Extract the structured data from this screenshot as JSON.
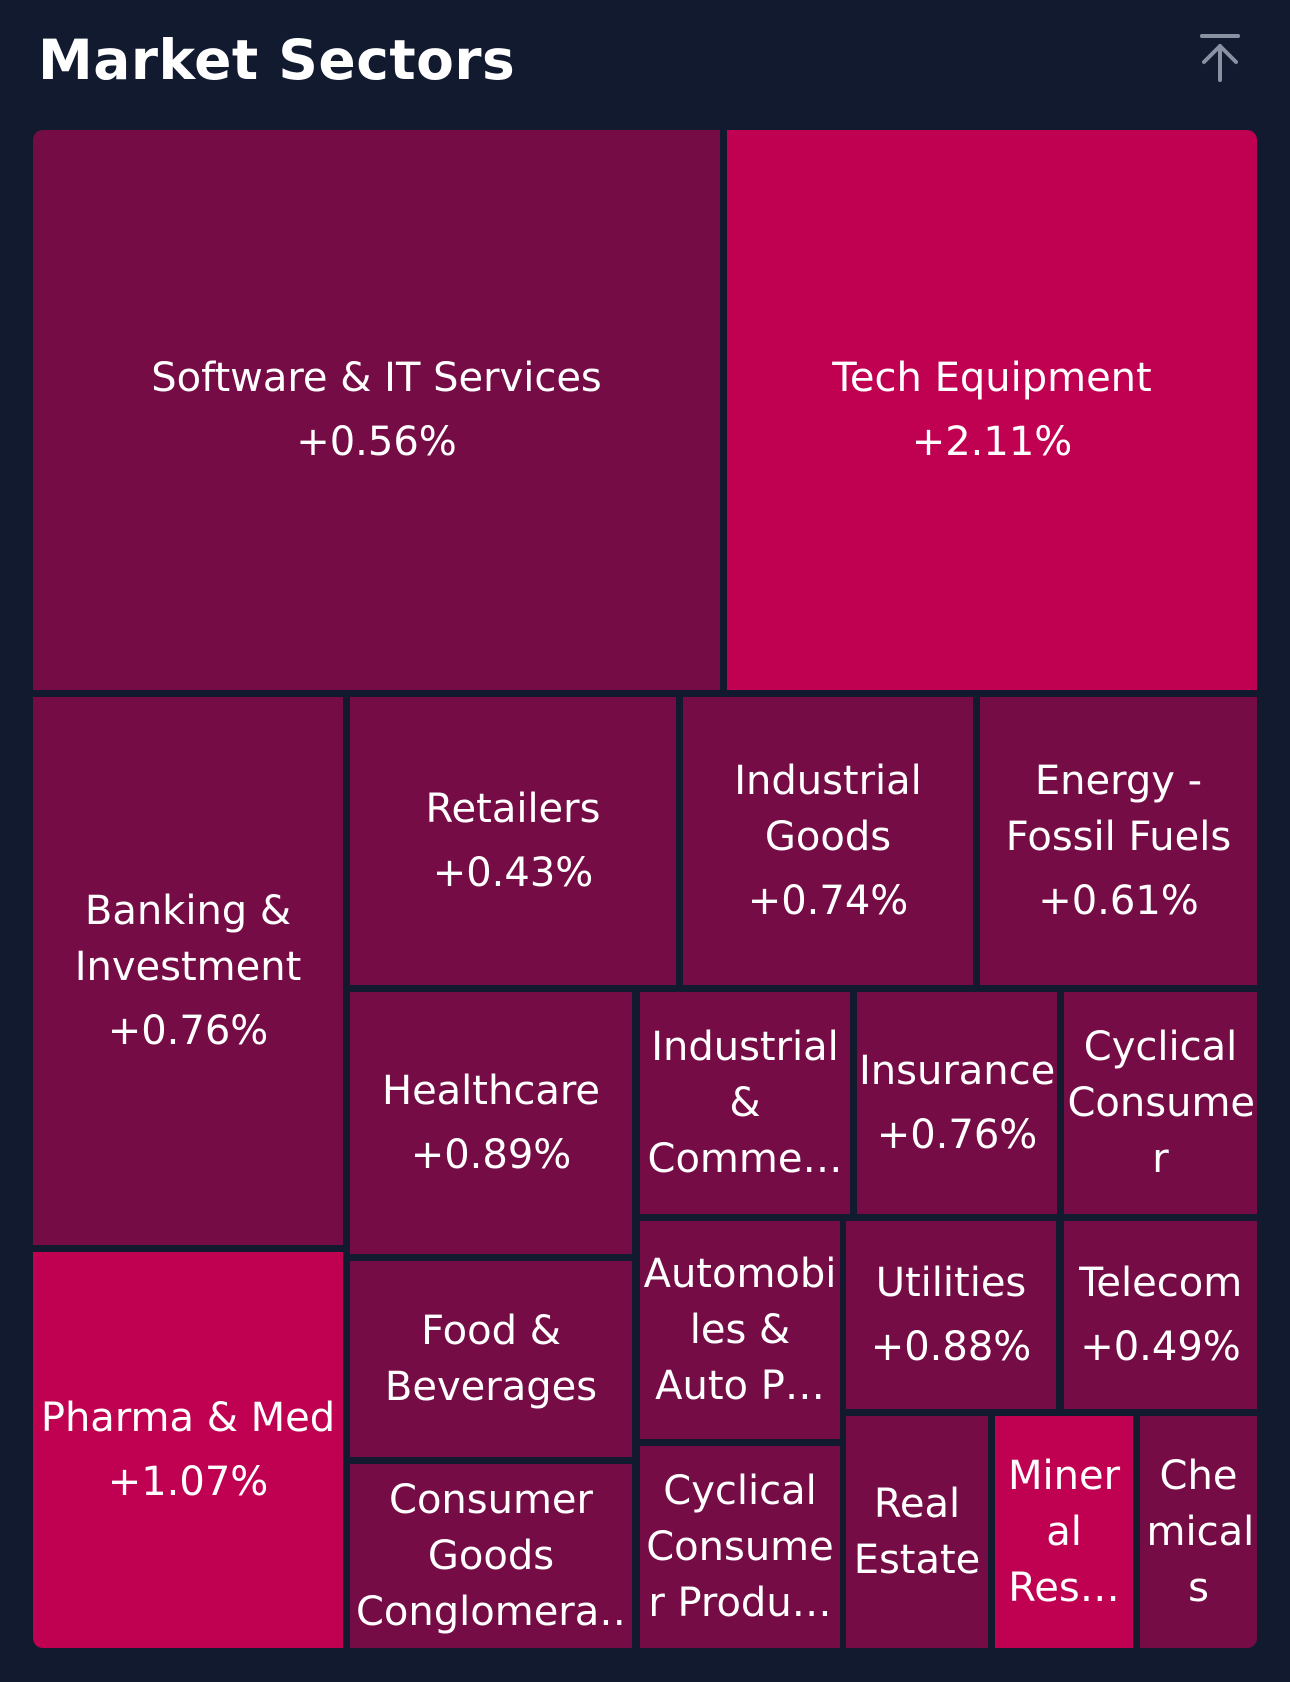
{
  "header": {
    "title": "Market Sectors",
    "top_icon": "arrow-up-to-top-icon"
  },
  "colors": {
    "background": "#121a30",
    "low_change": "#760c45",
    "high_change": "#c00050",
    "text": "#ffffff",
    "icon": "#8a91a3"
  },
  "chart_data": {
    "type": "treemap",
    "title": "Market Sectors",
    "sectors": [
      {
        "name": "Software & IT Services",
        "label": "Software & IT Services",
        "change": "+0.56%",
        "value": 0.56
      },
      {
        "name": "Tech Equipment",
        "label": "Tech Equipment",
        "change": "+2.11%",
        "value": 2.11
      },
      {
        "name": "Banking & Investment",
        "label": "Banking & Investment",
        "change": "+0.76%",
        "value": 0.76
      },
      {
        "name": "Retailers",
        "label": "Retailers",
        "change": "+0.43%",
        "value": 0.43
      },
      {
        "name": "Industrial Goods",
        "label": "Industrial Goods",
        "change": "+0.74%",
        "value": 0.74
      },
      {
        "name": "Energy - Fossil Fuels",
        "label": "Energy - Fossil Fuels",
        "change": "+0.61%",
        "value": 0.61
      },
      {
        "name": "Healthcare",
        "label": "Healthcare",
        "change": "+0.89%",
        "value": 0.89
      },
      {
        "name": "Industrial & Commercial",
        "label": "Industrial & Comme…",
        "change": "",
        "value": null
      },
      {
        "name": "Insurance",
        "label": "Insurance",
        "change": "+0.76%",
        "value": 0.76
      },
      {
        "name": "Cyclical Consumer",
        "label": "Cyclical Consume r",
        "change": "",
        "value": null
      },
      {
        "name": "Pharma & Med",
        "label": "Pharma & Med",
        "change": "+1.07%",
        "value": 1.07
      },
      {
        "name": "Food & Beverages",
        "label": "Food & Beverages",
        "change": "",
        "value": null
      },
      {
        "name": "Automobiles & Auto Parts",
        "label": "Automobi les & Auto P…",
        "change": "",
        "value": null
      },
      {
        "name": "Utilities",
        "label": "Utilities",
        "change": "+0.88%",
        "value": 0.88
      },
      {
        "name": "Telecom",
        "label": "Telecom",
        "change": "+0.49%",
        "value": 0.49
      },
      {
        "name": "Consumer Goods Conglomerates",
        "label": "Consumer Goods Conglomera…",
        "change": "",
        "value": null
      },
      {
        "name": "Cyclical Consumer Products",
        "label": "Cyclical Consume r Produ…",
        "change": "",
        "value": null
      },
      {
        "name": "Real Estate",
        "label": "Real Estate",
        "change": "",
        "value": null
      },
      {
        "name": "Mineral Resources",
        "label": "Miner al Res…",
        "change": "",
        "value": null
      },
      {
        "name": "Chemicals",
        "label": "Che mical s",
        "change": "",
        "value": null
      }
    ]
  }
}
